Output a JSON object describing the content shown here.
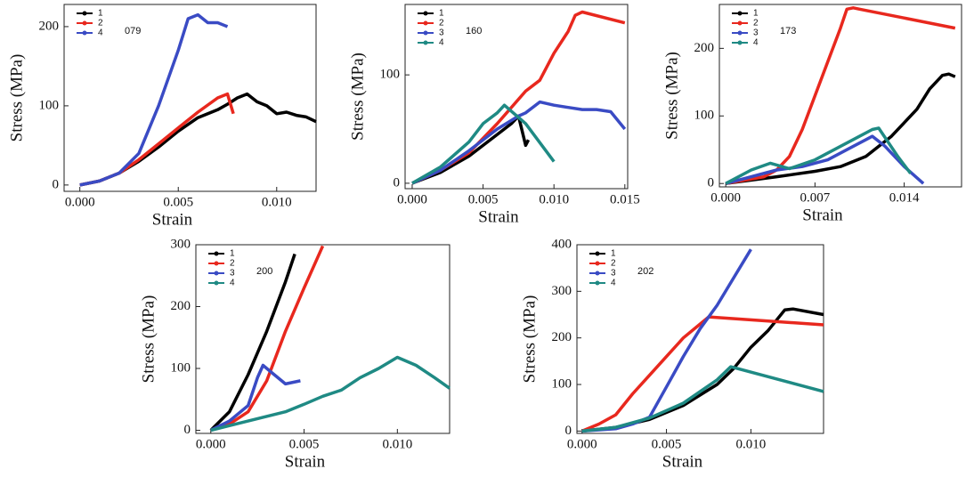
{
  "chart_data": [
    {
      "type": "line",
      "annotation": "079",
      "x_label": "Strain",
      "y_label": "Stress (MPa)",
      "xlim": [
        -0.0008,
        0.012
      ],
      "ylim": [
        -8,
        228
      ],
      "xticks": [
        {
          "value": 0,
          "label": "0.000"
        },
        0.005,
        {
          "value": 0.01,
          "label": "0.010"
        }
      ],
      "yticks": [
        0,
        100,
        200
      ],
      "series": [
        {
          "name": "1",
          "color": "#000000",
          "x": [
            0,
            0.001,
            0.002,
            0.003,
            0.004,
            0.005,
            0.006,
            0.007,
            0.0075,
            0.008,
            0.0085,
            0.009,
            0.0095,
            0.01,
            0.0105,
            0.011,
            0.0115,
            0.012
          ],
          "values": [
            0,
            5,
            15,
            30,
            48,
            68,
            85,
            95,
            102,
            110,
            115,
            105,
            100,
            90,
            92,
            88,
            86,
            80
          ]
        },
        {
          "name": "2",
          "color": "#e8281e",
          "x": [
            0,
            0.001,
            0.002,
            0.003,
            0.004,
            0.005,
            0.006,
            0.007,
            0.0075,
            0.0078
          ],
          "values": [
            0,
            5,
            15,
            32,
            52,
            72,
            92,
            110,
            115,
            90
          ]
        },
        {
          "name": "4",
          "color": "#3a4bc4",
          "x": [
            0,
            0.001,
            0.002,
            0.003,
            0.004,
            0.005,
            0.0055,
            0.006,
            0.0065,
            0.007,
            0.0075
          ],
          "values": [
            0,
            5,
            15,
            40,
            100,
            170,
            210,
            215,
            205,
            205,
            200
          ]
        }
      ]
    },
    {
      "type": "line",
      "annotation": "160",
      "x_label": "Strain",
      "y_label": "Stress (MPa)",
      "xlim": [
        -0.0005,
        0.0152
      ],
      "ylim": [
        -5,
        165
      ],
      "xticks": [
        {
          "value": 0,
          "label": "0.000"
        },
        0.005,
        {
          "value": 0.01,
          "label": "0.010"
        },
        0.015
      ],
      "yticks": [
        0,
        100
      ],
      "series": [
        {
          "name": "1",
          "color": "#000000",
          "x": [
            0,
            0.002,
            0.004,
            0.006,
            0.007,
            0.0075,
            0.008,
            0.0082
          ],
          "values": [
            0,
            10,
            25,
            45,
            55,
            62,
            35,
            40
          ]
        },
        {
          "name": "2",
          "color": "#e8281e",
          "x": [
            0,
            0.002,
            0.004,
            0.006,
            0.008,
            0.009,
            0.01,
            0.011,
            0.0115,
            0.012,
            0.015
          ],
          "values": [
            0,
            12,
            28,
            55,
            85,
            95,
            120,
            140,
            155,
            158,
            148
          ]
        },
        {
          "name": "3",
          "color": "#3a4bc4",
          "x": [
            0,
            0.002,
            0.004,
            0.006,
            0.0075,
            0.008,
            0.009,
            0.01,
            0.011,
            0.012,
            0.013,
            0.014,
            0.015
          ],
          "values": [
            0,
            12,
            30,
            50,
            62,
            65,
            75,
            72,
            70,
            68,
            68,
            66,
            50
          ]
        },
        {
          "name": "4",
          "color": "#1f8a84",
          "x": [
            0,
            0.002,
            0.004,
            0.005,
            0.006,
            0.0065,
            0.008,
            0.01
          ],
          "values": [
            0,
            15,
            38,
            55,
            65,
            72,
            55,
            20
          ]
        }
      ]
    },
    {
      "type": "line",
      "annotation": "173",
      "x_label": "Strain",
      "y_label": "Stress (MPa)",
      "xlim": [
        -0.0005,
        0.0185
      ],
      "ylim": [
        -5,
        265
      ],
      "xticks": [
        {
          "value": 0,
          "label": "0.000"
        },
        0.007,
        0.014
      ],
      "yticks": [
        0,
        100,
        200
      ],
      "series": [
        {
          "name": "1",
          "color": "#000000",
          "x": [
            0,
            0.004,
            0.007,
            0.009,
            0.011,
            0.013,
            0.015,
            0.016,
            0.017,
            0.0175,
            0.018
          ],
          "values": [
            0,
            10,
            18,
            25,
            40,
            70,
            110,
            140,
            160,
            162,
            158
          ]
        },
        {
          "name": "2",
          "color": "#e8281e",
          "x": [
            0,
            0.003,
            0.004,
            0.005,
            0.006,
            0.007,
            0.008,
            0.009,
            0.0095,
            0.01,
            0.0105,
            0.018
          ],
          "values": [
            0,
            10,
            20,
            40,
            80,
            130,
            180,
            230,
            258,
            260,
            258,
            230
          ]
        },
        {
          "name": "3",
          "color": "#3a4bc4",
          "x": [
            0,
            0.004,
            0.006,
            0.008,
            0.01,
            0.011,
            0.0115,
            0.0125,
            0.014,
            0.0155
          ],
          "values": [
            0,
            20,
            25,
            35,
            55,
            65,
            70,
            55,
            25,
            0
          ]
        },
        {
          "name": "4",
          "color": "#1f8a84",
          "x": [
            0,
            0.002,
            0.0035,
            0.005,
            0.007,
            0.009,
            0.0105,
            0.0115,
            0.012,
            0.0135,
            0.0145
          ],
          "values": [
            0,
            20,
            30,
            22,
            35,
            55,
            70,
            80,
            82,
            40,
            15
          ]
        }
      ]
    },
    {
      "type": "line",
      "annotation": "200",
      "x_label": "Strain",
      "y_label": "Stress (MPa)",
      "xlim": [
        -0.0008,
        0.0128
      ],
      "ylim": [
        -5,
        300
      ],
      "xticks": [
        {
          "value": 0,
          "label": "0.000"
        },
        0.005,
        {
          "value": 0.01,
          "label": "0.010"
        }
      ],
      "yticks": [
        0,
        100,
        200,
        300
      ],
      "series": [
        {
          "name": "1",
          "color": "#000000",
          "x": [
            0,
            0.001,
            0.002,
            0.003,
            0.004,
            0.0045
          ],
          "values": [
            0,
            30,
            90,
            160,
            240,
            285
          ]
        },
        {
          "name": "2",
          "color": "#e8281e",
          "x": [
            0,
            0.001,
            0.002,
            0.003,
            0.004,
            0.005,
            0.006
          ],
          "values": [
            0,
            10,
            30,
            80,
            160,
            230,
            298
          ]
        },
        {
          "name": "3",
          "color": "#3a4bc4",
          "x": [
            0,
            0.001,
            0.002,
            0.0025,
            0.0028,
            0.0032,
            0.004,
            0.0048
          ],
          "values": [
            0,
            15,
            40,
            85,
            105,
            95,
            75,
            80
          ]
        },
        {
          "name": "4",
          "color": "#1f8a84",
          "x": [
            0,
            0.002,
            0.004,
            0.005,
            0.006,
            0.007,
            0.008,
            0.009,
            0.01,
            0.011,
            0.012,
            0.0128
          ],
          "values": [
            0,
            15,
            30,
            42,
            55,
            65,
            85,
            100,
            118,
            105,
            85,
            68
          ]
        }
      ]
    },
    {
      "type": "line",
      "annotation": "202",
      "x_label": "Strain",
      "y_label": "Stress (MPa)",
      "xlim": [
        -0.0003,
        0.0143
      ],
      "ylim": [
        -5,
        400
      ],
      "xticks": [
        {
          "value": 0,
          "label": "0.000"
        },
        0.005,
        {
          "value": 0.01,
          "label": "0.010"
        }
      ],
      "yticks": [
        0,
        100,
        200,
        300,
        400
      ],
      "series": [
        {
          "name": "1",
          "color": "#000000",
          "x": [
            0,
            0.002,
            0.004,
            0.006,
            0.008,
            0.009,
            0.01,
            0.011,
            0.012,
            0.0125,
            0.0143
          ],
          "values": [
            0,
            8,
            25,
            55,
            100,
            135,
            180,
            215,
            260,
            262,
            250
          ]
        },
        {
          "name": "2",
          "color": "#e8281e",
          "x": [
            0,
            0.001,
            0.002,
            0.003,
            0.004,
            0.005,
            0.006,
            0.007,
            0.0075,
            0.0143
          ],
          "values": [
            0,
            15,
            35,
            80,
            120,
            160,
            200,
            230,
            245,
            228
          ]
        },
        {
          "name": "3",
          "color": "#3a4bc4",
          "x": [
            0,
            0.002,
            0.003,
            0.004,
            0.005,
            0.006,
            0.007,
            0.008,
            0.009,
            0.01
          ],
          "values": [
            0,
            5,
            15,
            30,
            95,
            160,
            220,
            270,
            330,
            390
          ]
        },
        {
          "name": "4",
          "color": "#1f8a84",
          "x": [
            0,
            0.002,
            0.004,
            0.006,
            0.008,
            0.0088,
            0.0143
          ],
          "values": [
            0,
            8,
            28,
            60,
            110,
            138,
            85
          ]
        }
      ]
    }
  ]
}
